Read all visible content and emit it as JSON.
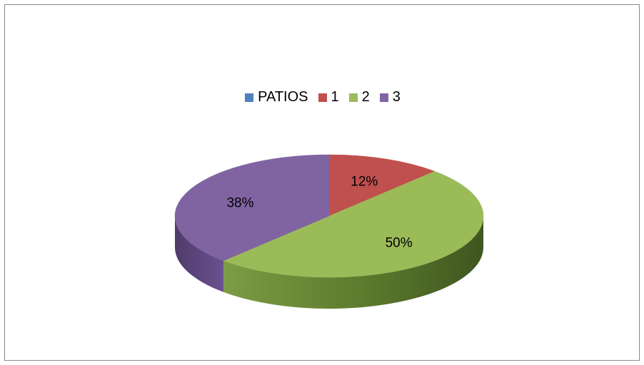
{
  "chart_data": {
    "type": "pie",
    "title": "",
    "legend": {
      "placement": "top",
      "entries": [
        "PATIOS",
        "1",
        "2",
        "3"
      ]
    },
    "slices": [
      {
        "label": "1",
        "value": 12,
        "display": "12%",
        "color": "#C0504D",
        "side_color": "#8B3A37"
      },
      {
        "label": "2",
        "value": 50,
        "display": "50%",
        "color": "#9BBB59",
        "side_color": "#6B8A34"
      },
      {
        "label": "3",
        "value": 38,
        "display": "38%",
        "color": "#8064A2",
        "side_color": "#5B4678"
      }
    ],
    "legend_colors": [
      "#4F81BD",
      "#C0504D",
      "#9BBB59",
      "#8064A2"
    ],
    "perspective": "3d"
  }
}
